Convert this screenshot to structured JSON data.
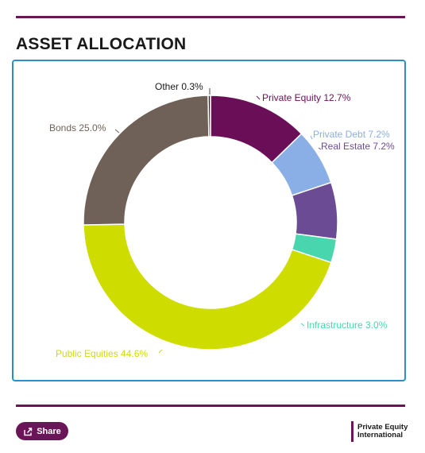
{
  "header": {
    "title": "ASSET ALLOCATION"
  },
  "chart_data": {
    "type": "pie",
    "variant": "donut",
    "title": "",
    "slices": [
      {
        "label": "Private Equity 12.7%",
        "value": 12.7,
        "color": "#6a0f57"
      },
      {
        "label": "Private Debt 7.2%",
        "value": 7.2,
        "color": "#8aaee6"
      },
      {
        "label": "Real Estate 7.2%",
        "value": 7.2,
        "color": "#6b4c94"
      },
      {
        "label": "Infrastructure 3.0%",
        "value": 3.0,
        "color": "#47d6ad"
      },
      {
        "label": "Public Equities 44.6%",
        "value": 44.6,
        "color": "#cfdc00"
      },
      {
        "label": "Bonds 25.0%",
        "value": 25.0,
        "color": "#6f6158"
      },
      {
        "label": "Other 0.3%",
        "value": 0.3,
        "color": "#2b2b2b"
      }
    ],
    "legend": "none",
    "data_labels": "outside"
  },
  "footer": {
    "share_label": "Share",
    "share_icon": "share-icon",
    "brand_line1": "Private Equity",
    "brand_line2": "International"
  }
}
